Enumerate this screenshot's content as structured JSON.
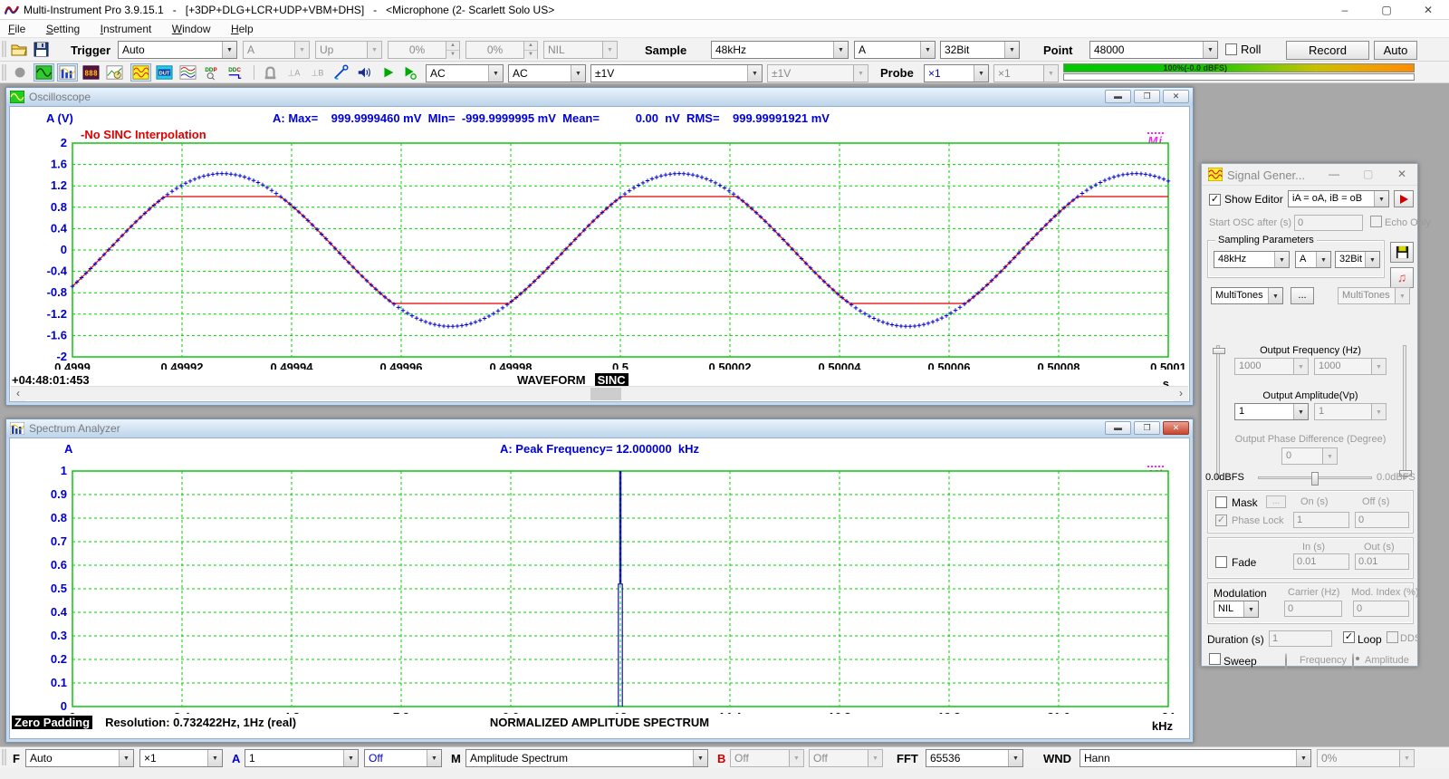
{
  "window": {
    "title": "Multi-Instrument Pro 3.9.15.1   -   [+3DP+DLG+LCR+UDP+VBM+DHS]   -   <Microphone (2- Scarlett Solo US>",
    "minimize": "–",
    "maximize": "▢",
    "close": "✕"
  },
  "menu": {
    "items": [
      "File",
      "Setting",
      "Instrument",
      "Window",
      "Help"
    ]
  },
  "toolbar1": {
    "trigger_label": "Trigger",
    "trigger_mode": "Auto",
    "trigger_source": "A",
    "trigger_edge": "Up",
    "trigger_level": "0%",
    "trigger_delay": "0%",
    "trigger_hpf": "NIL",
    "sample_label": "Sample",
    "sampling_rate": "48kHz",
    "sampling_channel": "A",
    "bit_depth": "32Bit",
    "point_label": "Point",
    "record_length": "48000",
    "roll_label": "Roll",
    "record_button": "Record",
    "auto_button": "Auto"
  },
  "toolbar2": {
    "icons": [
      "record-indicator",
      "oscilloscope",
      "spectrum-analyzer",
      "multimeter",
      "data-logger",
      "signal-generator",
      "device-test-plan",
      "spectrum-3d-plot",
      "ddp-viewer",
      "ddc-viewer",
      "input-clamp",
      "trigger-marker-a",
      "trigger-marker-b",
      "probe-calibration",
      "sound-output",
      "run",
      "run-loop"
    ],
    "coupling_a": "AC",
    "coupling_b": "AC",
    "range_a": "±1V",
    "range_b": "±1V",
    "probe_label": "Probe",
    "probe_a": "×1",
    "probe_b": "×1",
    "meter_text": "100%(-0.0 dBFS)"
  },
  "oscilloscope": {
    "title": "Oscilloscope",
    "y_axis_label": "A (V)",
    "stats_text": "A: Max=    999.9999460 mV  MIn=  -999.9999995 mV  Mean=           0.00  nV  RMS=    999.99991921 mV",
    "annotation": "-No SINC Interpolation",
    "logo": "Mi",
    "timestamp": "+04:48:01:453",
    "footer_label": "WAVEFORM",
    "footer_badge": "SINC",
    "x_unit": "s",
    "chart_data": {
      "type": "line",
      "title": "WAVEFORM",
      "xlabel": "s",
      "ylabel": "A (V)",
      "x_min": 0.4999,
      "x_max": 0.5001,
      "x_ticks": [
        "0.4999",
        "0.49992",
        "0.49994",
        "0.49996",
        "0.49998",
        "0.5",
        "0.50002",
        "0.50004",
        "0.50006",
        "0.50008",
        "0.5001"
      ],
      "y_min": -2,
      "y_max": 2,
      "y_ticks": [
        "2",
        "1.6",
        "1.2",
        "0.8",
        "0.4",
        "0",
        "-0.4",
        "-0.8",
        "-1.2",
        "-1.6",
        "-2"
      ],
      "grid": true,
      "series": [
        {
          "name": "channel-A-sinc-interpolated",
          "marker": "cross",
          "color": "#0000cc",
          "waveform": "sine",
          "frequency_hz": 12000,
          "amplitude_v": 1.43,
          "peak_time_s": 0.4999274
        },
        {
          "name": "channel-A-no-sinc-interpolation",
          "marker": "line",
          "color": "#e00000",
          "waveform": "sine-clipped",
          "frequency_hz": 12000,
          "amplitude_v": 1.43,
          "clip_v": 1.0,
          "peak_time_s": 0.4999274
        }
      ]
    }
  },
  "spectrum": {
    "title": "Spectrum Analyzer",
    "channel_label": "A",
    "stats_text": "A: Peak Frequency= 12.000000  kHz",
    "logo": "Mi",
    "footer_badge": "Zero Padding",
    "resolution_text": "Resolution: 0.732422Hz, 1Hz (real)",
    "footer_label": "NORMALIZED AMPLITUDE SPECTRUM",
    "x_unit": "kHz",
    "chart_data": {
      "type": "line",
      "title": "NORMALIZED AMPLITUDE SPECTRUM",
      "xlabel": "kHz",
      "x_min": 0,
      "x_max": 24,
      "x_ticks": [
        "0",
        "2.4",
        "4.8",
        "7.2",
        "9.6",
        "12",
        "14.4",
        "16.8",
        "19.2",
        "21.6",
        "24"
      ],
      "y_min": 0,
      "y_max": 1,
      "y_ticks": [
        "1",
        "0.9",
        "0.8",
        "0.7",
        "0.6",
        "0.5",
        "0.4",
        "0.3",
        "0.2",
        "0.1",
        "0"
      ],
      "grid": true,
      "peaks": [
        {
          "frequency_khz": 12,
          "amplitude": 1.0
        }
      ],
      "peak_color": "#000090"
    }
  },
  "signal_generator": {
    "title": "Signal Gener...",
    "minimize": "—",
    "maximize": "▢",
    "close": "✕",
    "show_editor_label": "Show Editor",
    "routing": "iA = oA, iB = oB",
    "start_osc_label": "Start OSC after (s)",
    "start_osc_value": "0",
    "echo_only_label": "Echo Only",
    "sampling_group_label": "Sampling Parameters",
    "rate": "48kHz",
    "channel": "A",
    "bits": "32Bit",
    "wave_a": "MultiTones",
    "more_button": "...",
    "wave_b": "MultiTones",
    "freq_label": "Output Frequency (Hz)",
    "freq_a": "1000",
    "freq_b": "1000",
    "amp_label": "Output Amplitude(Vp)",
    "amp_a": "1",
    "amp_b": "1",
    "phase_label": "Output Phase Difference (Degree)",
    "phase_value": "0",
    "dbfs_left": "0.0dBFS",
    "dbfs_right": "0.0dBFS",
    "mask_label": "Mask",
    "mask_more": "...",
    "on_label": "On (s)",
    "off_label": "Off (s)",
    "phase_lock_label": "Phase Lock",
    "phase_lock_on": "1",
    "phase_lock_off": "0",
    "fade_label": "Fade",
    "fade_in_label": "In (s)",
    "fade_out_label": "Out (s)",
    "fade_in": "0.01",
    "fade_out": "0.01",
    "modulation_label": "Modulation",
    "carrier_label": "Carrier (Hz)",
    "mod_index_label": "Mod. Index (%)",
    "modulation": "NIL",
    "carrier": "0",
    "mod_index": "0",
    "duration_label": "Duration (s)",
    "duration": "1",
    "loop_label": "Loop",
    "dds_label": "DDS",
    "sweep_label": "Sweep",
    "sweep_freq_label": "Frequency",
    "sweep_amp_label": "Amplitude"
  },
  "toolbar_bottom": {
    "f_label": "F",
    "freq_axis": "Auto",
    "zoom": "×1",
    "a_label": "A",
    "a_scale": "1",
    "a_mode": "Off",
    "m_label": "M",
    "view_mode": "Amplitude Spectrum",
    "b_label": "B",
    "b_scale": "Off",
    "b_mode": "Off",
    "fft_label": "FFT",
    "fft_size": "65536",
    "wnd_label": "WND",
    "window_fn": "Hann",
    "overlap": "0%"
  },
  "colors": {
    "stats_blue": "#0000d8",
    "trace_blue": "#0000cc",
    "trace_red": "#e00000",
    "grid_green": "#00c000",
    "grid_dash_green": "#00d400",
    "logo_magenta": "#ff22ff",
    "meter_green": "#00c800",
    "meter_orange": "#ff8c00"
  }
}
